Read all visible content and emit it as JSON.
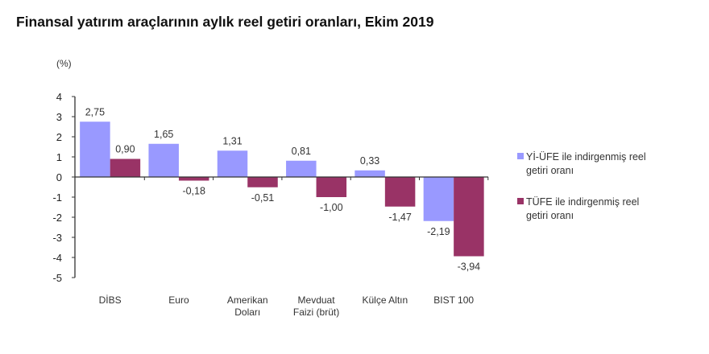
{
  "title": "Finansal yatırım araçlarının aylık reel getiri oranları, Ekim 2019",
  "unit_label": "(%)",
  "colors": {
    "yiufe": "#9999FF",
    "tufe": "#993366",
    "axis": "#333333"
  },
  "chart_data": {
    "type": "bar",
    "title": "Finansal yatırım araçlarının aylık reel getiri oranları, Ekim 2019",
    "xlabel": "",
    "ylabel": "(%)",
    "ylim": [
      -5,
      4
    ],
    "yticks": [
      "4",
      "3",
      "2",
      "1",
      "0",
      "-1",
      "-2",
      "-3",
      "-4",
      "-5"
    ],
    "grid": false,
    "legend_position": "right",
    "categories": [
      "DİBS",
      "Euro",
      "Amerikan Doları",
      "Mevduat Faizi (brüt)",
      "Külçe Altın",
      "BIST 100"
    ],
    "category_lines": [
      [
        "DİBS"
      ],
      [
        "Euro"
      ],
      [
        "Amerikan",
        "Doları"
      ],
      [
        "Mevduat",
        "Faizi (brüt)"
      ],
      [
        "Külçe Altın"
      ],
      [
        "BIST 100"
      ]
    ],
    "series": [
      {
        "name": "Yİ-ÜFE ile indirgenmiş reel getiri oranı",
        "color": "#9999FF",
        "values": [
          2.75,
          1.65,
          1.31,
          0.81,
          0.33,
          -2.19
        ],
        "labels": [
          "2,75",
          "1,65",
          "1,31",
          "0,81",
          "0,33",
          "-2,19"
        ]
      },
      {
        "name": "TÜFE ile indirgenmiş reel getiri oranı",
        "color": "#993366",
        "values": [
          0.9,
          -0.18,
          -0.51,
          -1.0,
          -1.47,
          -3.94
        ],
        "labels": [
          "0,90",
          "-0,18",
          "-0,51",
          "-1,00",
          "-1,47",
          "-3,94"
        ]
      }
    ]
  },
  "legend": {
    "items": [
      {
        "line1": "Yİ-ÜFE ile indirgenmiş reel",
        "line2": "getiri oranı",
        "color": "#9999FF"
      },
      {
        "line1": "TÜFE ile indirgenmiş reel",
        "line2": "getiri oranı",
        "color": "#993366"
      }
    ]
  }
}
